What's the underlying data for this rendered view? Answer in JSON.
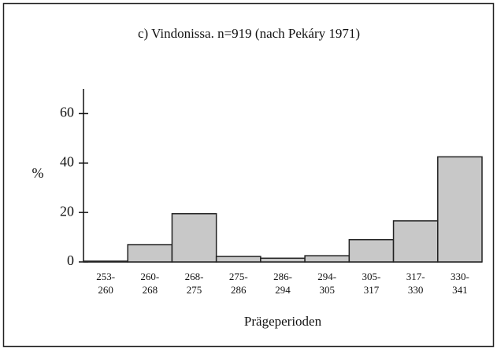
{
  "chart_data": {
    "type": "bar",
    "title": "c) Vindonissa. n=919 (nach Pekáry 1971)",
    "categories": [
      "253-\n260",
      "260-\n268",
      "268-\n275",
      "275-\n286",
      "286-\n294",
      "294-\n305",
      "305-\n317",
      "317-\n330",
      "330-\n341"
    ],
    "values": [
      0.3,
      7,
      19.5,
      2.2,
      1.5,
      2.5,
      9,
      16.6,
      42.5
    ],
    "color": "#c8c8c8",
    "ylabel": "%",
    "xlabel": "Prägeperioden",
    "ylim": [
      0,
      70
    ],
    "yticks": [
      0,
      20,
      40,
      60
    ]
  }
}
